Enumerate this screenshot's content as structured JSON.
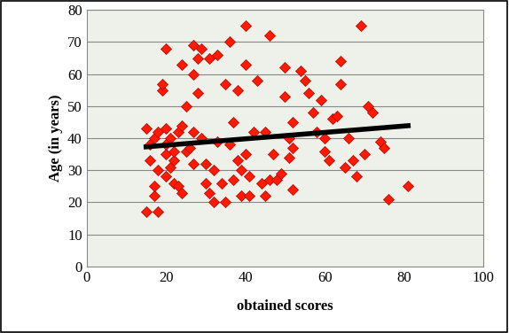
{
  "chart_data": {
    "type": "scatter",
    "x_label": "obtained scores",
    "y_label": "Age (in years)",
    "xlim": [
      0,
      100
    ],
    "xticks": [
      0,
      20,
      40,
      60,
      80,
      100
    ],
    "ylim": [
      0,
      80
    ],
    "yticks": [
      0,
      10,
      20,
      30,
      40,
      50,
      60,
      70,
      80
    ],
    "grid": true,
    "series": [
      {
        "type": "scatter",
        "color": "#ff1a00",
        "marker": "diamond",
        "x": [
          15,
          15,
          16,
          16,
          17,
          17,
          17,
          18,
          18,
          18,
          19,
          19,
          20,
          20,
          20,
          20,
          20,
          21,
          21,
          22,
          22,
          22,
          23,
          23,
          24,
          24,
          24,
          25,
          25,
          26,
          27,
          27,
          27,
          27,
          28,
          28,
          29,
          29,
          30,
          30,
          31,
          31,
          32,
          32,
          33,
          33,
          34,
          35,
          35,
          36,
          36,
          37,
          37,
          38,
          38,
          39,
          39,
          40,
          40,
          40,
          41,
          41,
          42,
          43,
          44,
          45,
          45,
          46,
          46,
          47,
          48,
          49,
          50,
          50,
          51,
          51,
          52,
          52,
          52,
          54,
          55,
          56,
          57,
          58,
          59,
          60,
          60,
          61,
          62,
          63,
          64,
          64,
          65,
          66,
          67,
          68,
          69,
          70,
          71,
          72,
          74,
          75,
          76,
          81
        ],
        "values": [
          43,
          17,
          33,
          38,
          22,
          25,
          40,
          17,
          42,
          30,
          55,
          57,
          68,
          43,
          38,
          28,
          35,
          31,
          40,
          26,
          33,
          36,
          25,
          42,
          63,
          44,
          23,
          50,
          36,
          37,
          69,
          60,
          42,
          32,
          54,
          65,
          68,
          40,
          32,
          26,
          65,
          23,
          20,
          30,
          66,
          39,
          26,
          20,
          57,
          70,
          38,
          27,
          45,
          55,
          33,
          30,
          22,
          75,
          63,
          35,
          28,
          22,
          42,
          58,
          26,
          42,
          22,
          72,
          27,
          35,
          27,
          29,
          62,
          53,
          34,
          40,
          37,
          45,
          24,
          61,
          58,
          54,
          48,
          42,
          52,
          40,
          36,
          33,
          46,
          47,
          57,
          64,
          31,
          40,
          33,
          28,
          75,
          35,
          50,
          48,
          39,
          37,
          21,
          25
        ]
      },
      {
        "type": "line",
        "color": "#000000",
        "line_style": "solid",
        "x": [
          15,
          81
        ],
        "values": [
          37.3,
          43.9
        ]
      }
    ]
  }
}
